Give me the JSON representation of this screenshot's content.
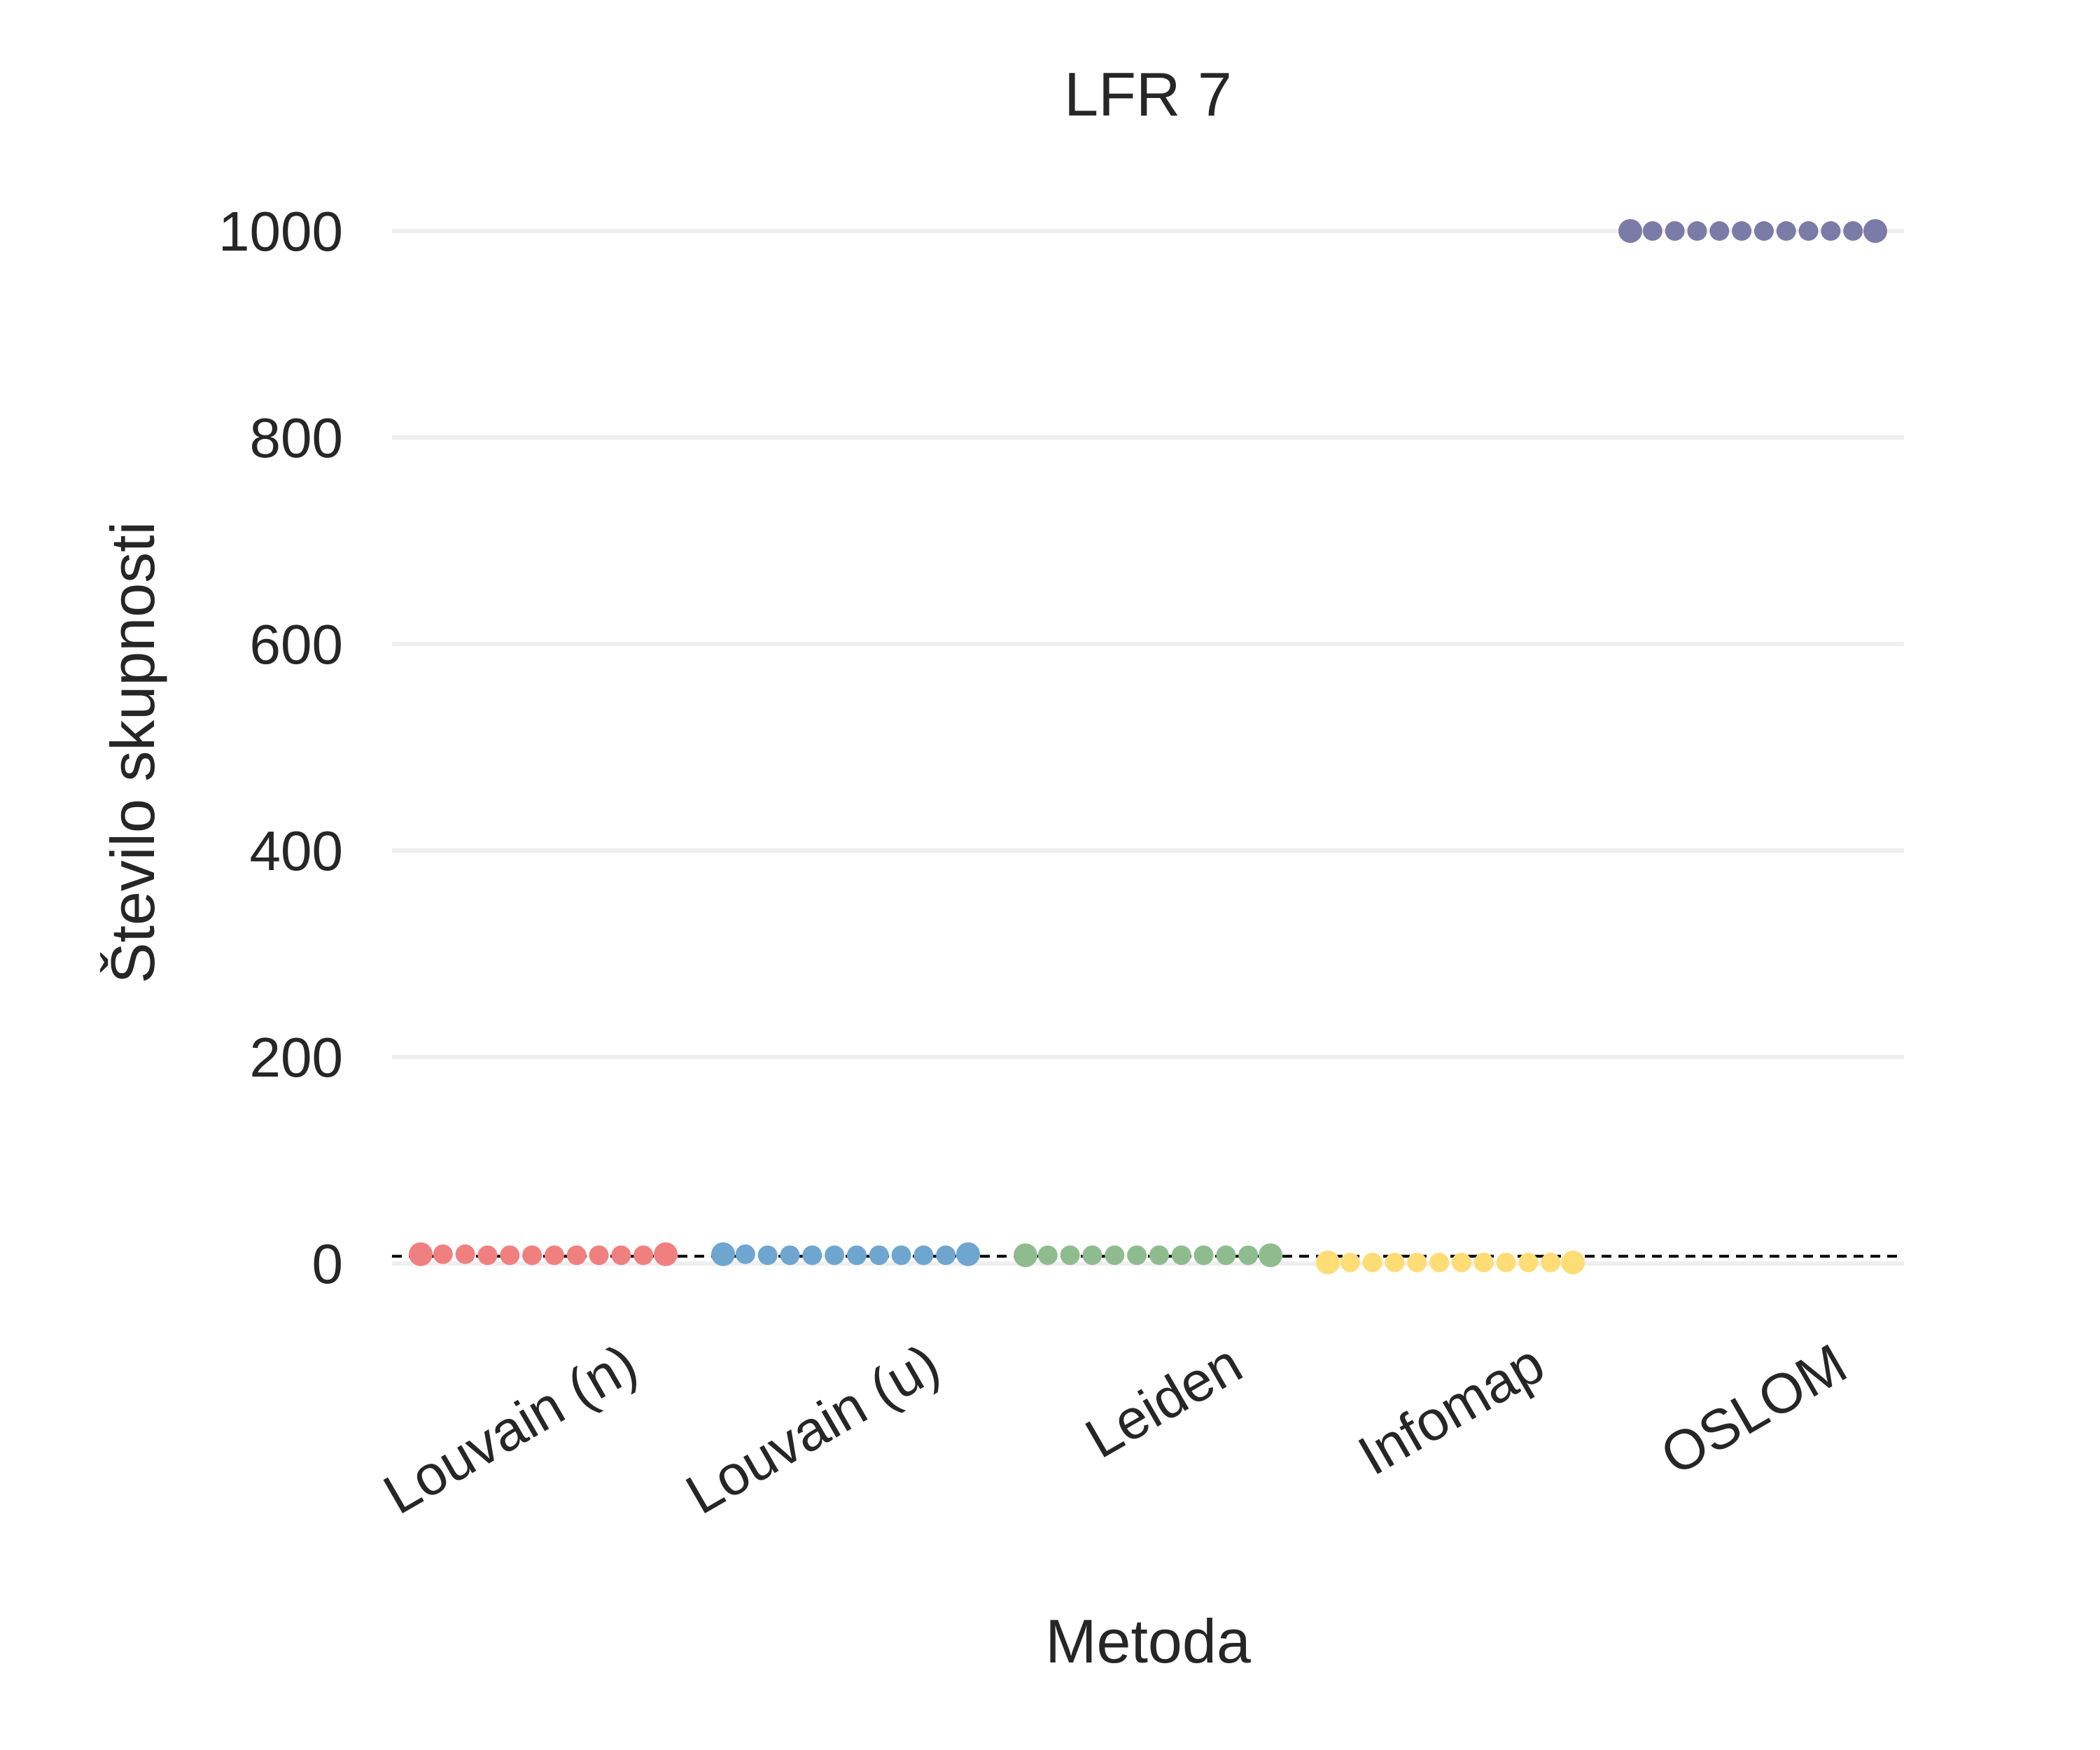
{
  "chart_data": {
    "type": "scatter",
    "subtype": "swarm",
    "title": "LFR 7",
    "xlabel": "Metoda",
    "ylabel": "Število skupnosti",
    "ylim": [
      -50,
      1100
    ],
    "yticks": [
      0,
      200,
      400,
      600,
      800,
      1000
    ],
    "grid": "y-only",
    "reference_line": {
      "y": 7,
      "style": "dashed",
      "color": "#000000"
    },
    "categories": [
      "Louvain (n)",
      "Louvain (u)",
      "Leiden",
      "Infomap",
      "OSLOM"
    ],
    "series": [
      {
        "category": "Louvain (n)",
        "color": "#F08080",
        "values": [
          9,
          9,
          9,
          8,
          8,
          8,
          8,
          8,
          8,
          8,
          8,
          9
        ]
      },
      {
        "category": "Louvain (u)",
        "color": "#6FA6D0",
        "values": [
          9,
          9,
          8,
          8,
          8,
          8,
          8,
          8,
          8,
          8,
          8,
          9
        ]
      },
      {
        "category": "Leiden",
        "color": "#8FBC8F",
        "values": [
          8,
          8,
          8,
          8,
          8,
          8,
          8,
          8,
          8,
          8,
          8,
          8
        ]
      },
      {
        "category": "Infomap",
        "color": "#FFDD76",
        "values": [
          1,
          1,
          1,
          1,
          1,
          1,
          1,
          1,
          1,
          1,
          1,
          1
        ]
      },
      {
        "category": "OSLOM",
        "color": "#7B7BA8",
        "values": [
          1000,
          1000,
          1000,
          1000,
          1000,
          1000,
          1000,
          1000,
          1000,
          1000,
          1000,
          1000
        ]
      }
    ]
  }
}
